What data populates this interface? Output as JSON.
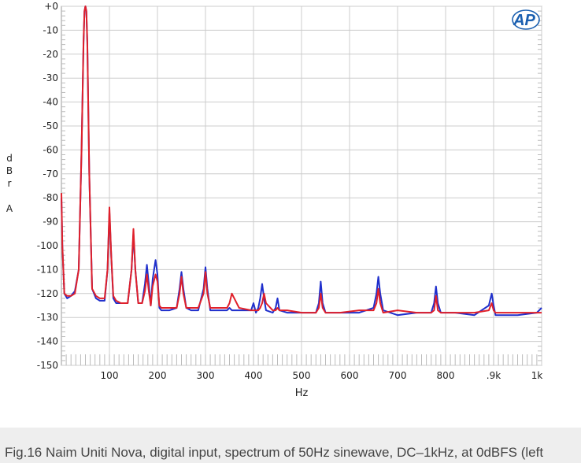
{
  "chart_data": {
    "type": "line",
    "title": "",
    "xlabel": "Hz",
    "ylabel": [
      "d",
      "B",
      "r",
      "",
      "A"
    ],
    "xlim": [
      0,
      1000
    ],
    "ylim": [
      -150,
      0
    ],
    "grid": true,
    "x_ticks": [
      {
        "v": 100,
        "label": "100"
      },
      {
        "v": 200,
        "label": "200"
      },
      {
        "v": 300,
        "label": "300"
      },
      {
        "v": 400,
        "label": "400"
      },
      {
        "v": 500,
        "label": "500"
      },
      {
        "v": 600,
        "label": "600"
      },
      {
        "v": 700,
        "label": "700"
      },
      {
        "v": 800,
        "label": "800"
      },
      {
        "v": 900,
        "label": ".9k"
      },
      {
        "v": 1000,
        "label": "1k"
      }
    ],
    "y_ticks": [
      {
        "v": 0,
        "label": "+0"
      },
      {
        "v": -10,
        "label": "-10"
      },
      {
        "v": -20,
        "label": "-20"
      },
      {
        "v": -30,
        "label": "-30"
      },
      {
        "v": -40,
        "label": "-40"
      },
      {
        "v": -50,
        "label": "-50"
      },
      {
        "v": -60,
        "label": "-60"
      },
      {
        "v": -70,
        "label": "-70"
      },
      {
        "v": -80,
        "label": "-80"
      },
      {
        "v": -90,
        "label": "-90"
      },
      {
        "v": -100,
        "label": "-100"
      },
      {
        "v": -110,
        "label": "-110"
      },
      {
        "v": -120,
        "label": "-120"
      },
      {
        "v": -130,
        "label": "-130"
      },
      {
        "v": -140,
        "label": "-140"
      },
      {
        "v": -150,
        "label": "-150"
      }
    ],
    "series": [
      {
        "color": "#1f2fcc",
        "x": [
          0,
          2,
          6,
          12,
          20,
          28,
          36,
          42,
          46,
          48,
          50,
          52,
          54,
          58,
          64,
          72,
          80,
          90,
          96,
          100,
          104,
          108,
          114,
          124,
          138,
          146,
          150,
          154,
          160,
          168,
          174,
          178,
          182,
          186,
          190,
          196,
          200,
          204,
          208,
          215,
          225,
          240,
          246,
          250,
          254,
          260,
          270,
          285,
          296,
          300,
          304,
          310,
          330,
          345,
          350,
          355,
          370,
          395,
          400,
          405,
          410,
          414,
          418,
          422,
          426,
          440,
          446,
          450,
          454,
          470,
          500,
          530,
          536,
          540,
          544,
          550,
          580,
          620,
          650,
          656,
          660,
          664,
          670,
          700,
          740,
          770,
          776,
          780,
          784,
          790,
          820,
          860,
          890,
          896,
          900,
          904,
          910,
          950,
          990,
          1000
        ],
        "y": [
          -80,
          -100,
          -120,
          -122,
          -121,
          -119,
          -110,
          -60,
          -15,
          -2,
          0,
          -2,
          -15,
          -70,
          -118,
          -122,
          -123,
          -123,
          -110,
          -86,
          -105,
          -122,
          -124,
          -124,
          -124,
          -110,
          -95,
          -110,
          -124,
          -124,
          -116,
          -108,
          -116,
          -125,
          -114,
          -106,
          -112,
          -126,
          -127,
          -127,
          -127,
          -126,
          -118,
          -111,
          -118,
          -126,
          -127,
          -127,
          -118,
          -109,
          -118,
          -127,
          -127,
          -127,
          -126,
          -127,
          -127,
          -127,
          -124,
          -128,
          -126,
          -122,
          -116,
          -122,
          -127,
          -128,
          -126,
          -122,
          -127,
          -128,
          -128,
          -128,
          -124,
          -115,
          -124,
          -128,
          -128,
          -128,
          -126,
          -120,
          -113,
          -120,
          -127,
          -129,
          -128,
          -128,
          -124,
          -117,
          -124,
          -128,
          -128,
          -129,
          -125,
          -120,
          -125,
          -129,
          -129,
          -129,
          -128,
          -126
        ]
      },
      {
        "color": "#e0202a",
        "x": [
          0,
          2,
          6,
          12,
          20,
          28,
          36,
          42,
          46,
          48,
          50,
          52,
          54,
          58,
          64,
          72,
          80,
          90,
          96,
          100,
          104,
          108,
          114,
          124,
          138,
          146,
          150,
          154,
          160,
          168,
          174,
          178,
          182,
          186,
          190,
          196,
          200,
          204,
          208,
          215,
          225,
          240,
          246,
          250,
          254,
          260,
          270,
          285,
          296,
          300,
          304,
          310,
          330,
          345,
          350,
          355,
          370,
          395,
          400,
          405,
          410,
          414,
          418,
          422,
          426,
          440,
          446,
          450,
          454,
          470,
          500,
          530,
          536,
          540,
          544,
          550,
          580,
          620,
          650,
          656,
          660,
          664,
          670,
          700,
          740,
          770,
          776,
          780,
          784,
          790,
          820,
          860,
          890,
          896,
          900,
          904,
          910,
          950,
          990,
          1000
        ],
        "y": [
          -78,
          -100,
          -120,
          -121,
          -121,
          -120,
          -110,
          -60,
          -15,
          -2,
          0,
          -2,
          -15,
          -70,
          -118,
          -121,
          -122,
          -122,
          -110,
          -84,
          -105,
          -121,
          -123,
          -124,
          -124,
          -110,
          -93,
          -110,
          -124,
          -124,
          -119,
          -112,
          -119,
          -125,
          -117,
          -112,
          -115,
          -125,
          -126,
          -126,
          -126,
          -126,
          -120,
          -113,
          -120,
          -126,
          -126,
          -126,
          -120,
          -111,
          -120,
          -126,
          -126,
          -126,
          -124,
          -120,
          -126,
          -127,
          -127,
          -127,
          -127,
          -126,
          -124,
          -120,
          -124,
          -127,
          -127,
          -126,
          -127,
          -127,
          -128,
          -128,
          -126,
          -120,
          -126,
          -128,
          -128,
          -127,
          -127,
          -124,
          -118,
          -124,
          -128,
          -127,
          -128,
          -128,
          -127,
          -121,
          -127,
          -128,
          -128,
          -128,
          -127,
          -124,
          -127,
          -128,
          -128,
          -128,
          -128,
          -128
        ]
      }
    ]
  },
  "logo": {
    "text": "AP",
    "icon": "audio-precision-logo"
  },
  "caption": {
    "text": "Fig.16 Naim Uniti Nova, digital input, spectrum of 50Hz sinewave, DC–1kHz, at 0dBFS (left"
  }
}
